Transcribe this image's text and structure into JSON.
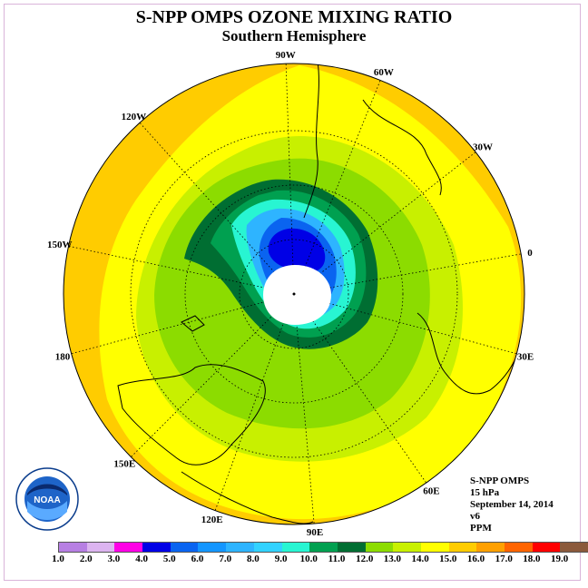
{
  "title": "S-NPP OMPS OZONE MIXING RATIO",
  "subtitle": "Southern Hemisphere",
  "longitude_labels": [
    "90W",
    "60W",
    "30W",
    "0",
    "30E",
    "60E",
    "90E",
    "120E",
    "150E",
    "180",
    "150W",
    "120W"
  ],
  "info": {
    "instrument": "S-NPP OMPS",
    "pressure": "15 hPa",
    "date": "September 14, 2014",
    "version": "v6",
    "units": "PPM"
  },
  "logo": {
    "text": "NOAA",
    "ring_text": "NATIONAL OCEANIC AND ATMOSPHERIC ADMINISTRATION · U.S. DEPARTMENT OF COMMERCE"
  },
  "colorbar": {
    "ticks": [
      "1.0",
      "2.0",
      "3.0",
      "4.0",
      "5.0",
      "6.0",
      "7.0",
      "8.0",
      "9.0",
      "10.0",
      "11.0",
      "12.0",
      "13.0",
      "14.0",
      "15.0",
      "16.0",
      "17.0",
      "18.0",
      "19.0"
    ],
    "colors": [
      "#b77fe3",
      "#dcb4f0",
      "#ff00e6",
      "#0000e6",
      "#0a64f0",
      "#1496ff",
      "#2eb4ff",
      "#32d2ff",
      "#28f5d2",
      "#00a050",
      "#006e32",
      "#8cdc00",
      "#c8f000",
      "#ffff00",
      "#ffcc00",
      "#ffa000",
      "#ff6400",
      "#ff0000",
      "#8b5a3c"
    ]
  }
}
